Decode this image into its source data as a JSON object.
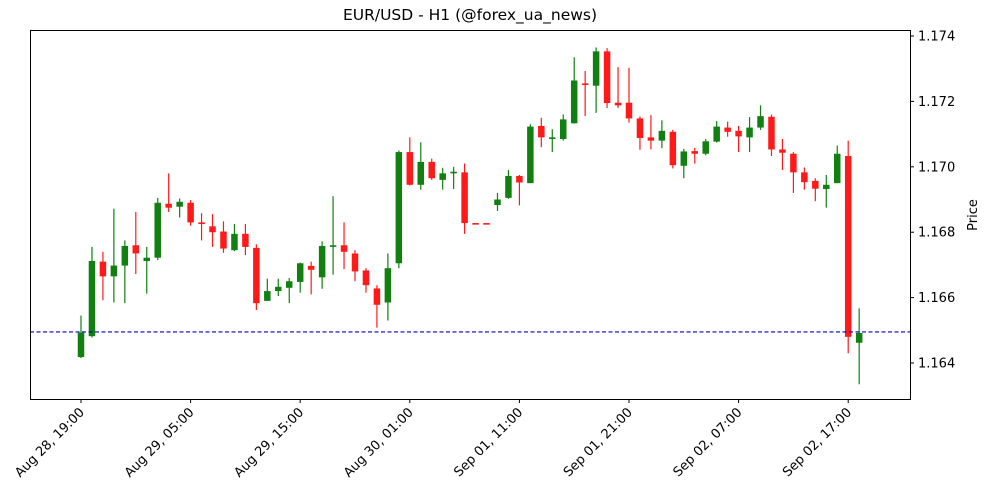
{
  "title": "EUR/USD - H1 (@forex_ua_news)",
  "colors": {
    "up": "#118011",
    "down": "#ff1a1a",
    "current_price_line": "#0000cc",
    "axes": "#000000",
    "background": "#ffffff"
  },
  "chart_data": {
    "type": "candlestick",
    "title": "EUR/USD - H1 (@forex_ua_news)",
    "symbol": "EUR/USD",
    "timeframe": "H1",
    "xlabel": "",
    "ylabel": "Price",
    "y_axis_position": "right",
    "ylim": [
      1.1628,
      1.17435
    ],
    "yticks": [
      1.164,
      1.166,
      1.168,
      1.17,
      1.172,
      1.174
    ],
    "ytick_labels": [
      "1.164",
      "1.166",
      "1.168",
      "1.170",
      "1.172",
      "1.174"
    ],
    "xticks": [
      {
        "index": 0,
        "label": "Aug 28, 19:00"
      },
      {
        "index": 10,
        "label": "Aug 29, 05:00"
      },
      {
        "index": 20,
        "label": "Aug 29, 15:00"
      },
      {
        "index": 30,
        "label": "Aug 30, 01:00"
      },
      {
        "index": 40,
        "label": "Sep 01, 11:00"
      },
      {
        "index": 50,
        "label": "Sep 01, 21:00"
      },
      {
        "index": 60,
        "label": "Sep 02, 07:00"
      },
      {
        "index": 70,
        "label": "Sep 02, 17:00"
      }
    ],
    "grid": false,
    "legend": null,
    "horizontal_lines": [
      {
        "value": 1.16495,
        "style": "dashed",
        "color": "#0000cc",
        "meaning": "current price"
      }
    ],
    "ohlc_columns": [
      "open",
      "high",
      "low",
      "close"
    ],
    "candles": [
      [
        1.16418,
        1.16545,
        1.16415,
        1.16493
      ],
      [
        1.16482,
        1.16755,
        1.16478,
        1.16712
      ],
      [
        1.1671,
        1.1674,
        1.16592,
        1.16665
      ],
      [
        1.16665,
        1.16872,
        1.16585,
        1.16698
      ],
      [
        1.16698,
        1.16775,
        1.16583,
        1.16758
      ],
      [
        1.1676,
        1.16862,
        1.16672,
        1.16735
      ],
      [
        1.16712,
        1.16755,
        1.16612,
        1.16722
      ],
      [
        1.16722,
        1.16905,
        1.16715,
        1.1689
      ],
      [
        1.16887,
        1.1698,
        1.16862,
        1.16875
      ],
      [
        1.16878,
        1.16903,
        1.16845,
        1.16893
      ],
      [
        1.1689,
        1.16898,
        1.1682,
        1.1683
      ],
      [
        1.1683,
        1.16858,
        1.16775,
        1.16825
      ],
      [
        1.16818,
        1.16855,
        1.16755,
        1.168
      ],
      [
        1.16802,
        1.16833,
        1.16737,
        1.1675
      ],
      [
        1.16745,
        1.16825,
        1.16742,
        1.16795
      ],
      [
        1.16795,
        1.16825,
        1.1673,
        1.16755
      ],
      [
        1.16752,
        1.16763,
        1.16562,
        1.16583
      ],
      [
        1.1659,
        1.16658,
        1.1659,
        1.1662
      ],
      [
        1.1662,
        1.16658,
        1.16605,
        1.16633
      ],
      [
        1.1663,
        1.1666,
        1.16583,
        1.1665
      ],
      [
        1.16648,
        1.16707,
        1.16615,
        1.16705
      ],
      [
        1.16697,
        1.1671,
        1.1661,
        1.16685
      ],
      [
        1.16662,
        1.16772,
        1.16627,
        1.16758
      ],
      [
        1.1676,
        1.1691,
        1.1667,
        1.1676
      ],
      [
        1.1676,
        1.1683,
        1.16687,
        1.1674
      ],
      [
        1.16735,
        1.16745,
        1.1665,
        1.1668
      ],
      [
        1.16683,
        1.1669,
        1.16615,
        1.16638
      ],
      [
        1.16628,
        1.16638,
        1.16508,
        1.16578
      ],
      [
        1.16585,
        1.16735,
        1.1653,
        1.1669
      ],
      [
        1.16705,
        1.1705,
        1.1669,
        1.17045
      ],
      [
        1.17045,
        1.1709,
        1.16943,
        1.16945
      ],
      [
        1.16945,
        1.17075,
        1.1693,
        1.17015
      ],
      [
        1.17015,
        1.17025,
        1.1696,
        1.16965
      ],
      [
        1.1696,
        1.16997,
        1.1693,
        1.1698
      ],
      [
        1.1698,
        1.17,
        1.16932,
        1.16985
      ],
      [
        1.16983,
        1.1701,
        1.16795,
        1.16828
      ],
      [
        1.16828,
        1.16828,
        1.16828,
        1.16827
      ],
      [
        1.16828,
        1.16828,
        1.16828,
        1.16827
      ],
      [
        1.16883,
        1.1692,
        1.16865,
        1.169
      ],
      [
        1.16905,
        1.1699,
        1.16902,
        1.16972
      ],
      [
        1.16972,
        1.16975,
        1.16882,
        1.16952
      ],
      [
        1.1695,
        1.1713,
        1.1695,
        1.17123
      ],
      [
        1.17125,
        1.1715,
        1.1706,
        1.1709
      ],
      [
        1.17085,
        1.17115,
        1.17045,
        1.1709
      ],
      [
        1.17085,
        1.1716,
        1.1708,
        1.17145
      ],
      [
        1.17133,
        1.17335,
        1.17132,
        1.17264
      ],
      [
        1.17255,
        1.17293,
        1.17155,
        1.17253
      ],
      [
        1.17248,
        1.17365,
        1.17165,
        1.17353
      ],
      [
        1.17353,
        1.17363,
        1.1718,
        1.17195
      ],
      [
        1.17196,
        1.17305,
        1.1718,
        1.17188
      ],
      [
        1.17196,
        1.17303,
        1.17135,
        1.17148
      ],
      [
        1.17148,
        1.17154,
        1.17052,
        1.17088
      ],
      [
        1.1709,
        1.17158,
        1.17053,
        1.1708
      ],
      [
        1.1708,
        1.17142,
        1.17057,
        1.1711
      ],
      [
        1.17107,
        1.17113,
        1.16995,
        1.17005
      ],
      [
        1.17003,
        1.17055,
        1.16965,
        1.17047
      ],
      [
        1.17048,
        1.17058,
        1.1701,
        1.1704
      ],
      [
        1.1704,
        1.17085,
        1.17035,
        1.17078
      ],
      [
        1.17077,
        1.1714,
        1.17074,
        1.17123
      ],
      [
        1.1712,
        1.17138,
        1.17092,
        1.17107
      ],
      [
        1.1711,
        1.17125,
        1.17045,
        1.17093
      ],
      [
        1.1709,
        1.17152,
        1.17045,
        1.1712
      ],
      [
        1.1712,
        1.17188,
        1.17113,
        1.17155
      ],
      [
        1.17153,
        1.1716,
        1.17033,
        1.17053
      ],
      [
        1.17053,
        1.17085,
        1.1699,
        1.17043
      ],
      [
        1.1704,
        1.17045,
        1.1692,
        1.16983
      ],
      [
        1.16983,
        1.16998,
        1.1693,
        1.16953
      ],
      [
        1.16957,
        1.16965,
        1.16895,
        1.16933
      ],
      [
        1.16932,
        1.16975,
        1.16875,
        1.16945
      ],
      [
        1.1695,
        1.17065,
        1.1695,
        1.1704
      ],
      [
        1.17033,
        1.1708,
        1.1643,
        1.1648
      ],
      [
        1.16462,
        1.16567,
        1.16335,
        1.16492
      ]
    ]
  }
}
